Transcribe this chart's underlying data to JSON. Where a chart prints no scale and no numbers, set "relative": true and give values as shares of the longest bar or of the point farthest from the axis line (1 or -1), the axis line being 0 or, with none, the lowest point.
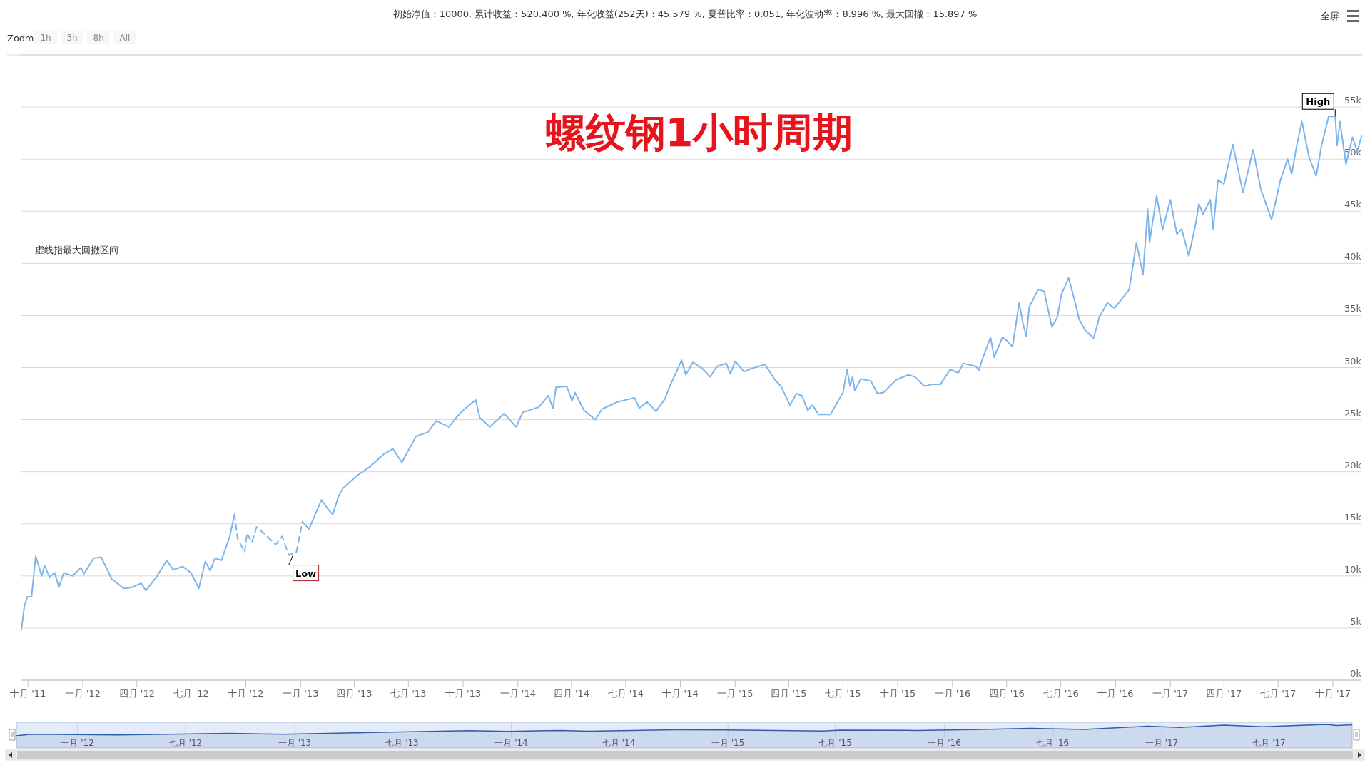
{
  "chart_data": [
    {
      "type": "line",
      "title": "螺纹钢1小时周期",
      "subtitle": "初始净值：10000, 累计收益：520.400 %, 年化收益(252天)：45.579 %, 夏普比率：0.051, 年化波动率：8.996 %, 最大回撤：15.897 %",
      "annotations": [
        {
          "text": "Low",
          "x": "2012-12-12",
          "y": 12000
        },
        {
          "text": "High",
          "x": "2017-10-05",
          "y": 54100
        },
        "虚线指最大回撤区间",
        "Zoom",
        "1h",
        "3h",
        "8h",
        "All",
        "全屏"
      ],
      "xlim": [
        "2011-09-20",
        "2017-11-18"
      ],
      "ylim": [
        0,
        60000
      ],
      "xticks": [
        {
          "value": "2011-10-01",
          "label": "十月 '11"
        },
        {
          "value": "2012-01-01",
          "label": "一月 '12"
        },
        {
          "value": "2012-04-01",
          "label": "四月 '12"
        },
        {
          "value": "2012-07-01",
          "label": "七月 '12"
        },
        {
          "value": "2012-10-01",
          "label": "十月 '12"
        },
        {
          "value": "2013-01-01",
          "label": "一月 '13"
        },
        {
          "value": "2013-04-01",
          "label": "四月 '13"
        },
        {
          "value": "2013-07-01",
          "label": "七月 '13"
        },
        {
          "value": "2013-10-01",
          "label": "十月 '13"
        },
        {
          "value": "2014-01-01",
          "label": "一月 '14"
        },
        {
          "value": "2014-04-01",
          "label": "四月 '14"
        },
        {
          "value": "2014-07-01",
          "label": "七月 '14"
        },
        {
          "value": "2014-10-01",
          "label": "十月 '14"
        },
        {
          "value": "2015-01-01",
          "label": "一月 '15"
        },
        {
          "value": "2015-04-01",
          "label": "四月 '15"
        },
        {
          "value": "2015-07-01",
          "label": "七月 '15"
        },
        {
          "value": "2015-10-01",
          "label": "十月 '15"
        },
        {
          "value": "2016-01-01",
          "label": "一月 '16"
        },
        {
          "value": "2016-04-01",
          "label": "四月 '16"
        },
        {
          "value": "2016-07-01",
          "label": "七月 '16"
        },
        {
          "value": "2016-10-01",
          "label": "十月 '16"
        },
        {
          "value": "2017-01-01",
          "label": "一月 '17"
        },
        {
          "value": "2017-04-01",
          "label": "四月 '17"
        },
        {
          "value": "2017-07-01",
          "label": "七月 '17"
        },
        {
          "value": "2017-10-01",
          "label": "十月 '17"
        }
      ],
      "yticks": [
        {
          "value": 0,
          "label": "0k"
        },
        {
          "value": 5000,
          "label": "5k"
        },
        {
          "value": 10000,
          "label": "10k"
        },
        {
          "value": 15000,
          "label": "15k"
        },
        {
          "value": 20000,
          "label": "20k"
        },
        {
          "value": 25000,
          "label": "25k"
        },
        {
          "value": 30000,
          "label": "30k"
        },
        {
          "value": 35000,
          "label": "35k"
        },
        {
          "value": 40000,
          "label": "40k"
        },
        {
          "value": 45000,
          "label": "45k"
        },
        {
          "value": 50000,
          "label": "50k"
        },
        {
          "value": 55000,
          "label": "55k"
        },
        {
          "value": 60000,
          "label": null
        }
      ],
      "grid": "y",
      "series": [
        {
          "color": "#7cb5ec",
          "line_style": "solid",
          "x": [
            "2011-09-20",
            "2011-09-25",
            "2011-09-30",
            "2011-10-07",
            "2011-10-14",
            "2011-10-24",
            "2011-10-29",
            "2011-11-06",
            "2011-11-15",
            "2011-11-22",
            "2011-11-30",
            "2011-12-15",
            "2011-12-29",
            "2012-01-03",
            "2012-01-19",
            "2012-02-01",
            "2012-02-19",
            "2012-03-10",
            "2012-03-23",
            "2012-04-08",
            "2012-04-16",
            "2012-05-05",
            "2012-05-21",
            "2012-06-01",
            "2012-06-17",
            "2012-07-01",
            "2012-07-14",
            "2012-07-25",
            "2012-08-02",
            "2012-08-10",
            "2012-08-21",
            "2012-09-04",
            "2012-09-12",
            "2012-10-19",
            "2013-01-04",
            "2013-01-15",
            "2013-02-05",
            "2013-02-16",
            "2013-02-24",
            "2013-03-06",
            "2013-03-13",
            "2013-04-05",
            "2013-04-28",
            "2013-05-21",
            "2013-06-05",
            "2013-06-20",
            "2013-07-14",
            "2013-08-03",
            "2013-08-17",
            "2013-09-07",
            "2013-09-21",
            "2013-10-01",
            "2013-10-22",
            "2013-10-29",
            "2013-11-15",
            "2013-12-09",
            "2013-12-29",
            "2014-01-09",
            "2014-02-05",
            "2014-02-21",
            "2014-03-01",
            "2014-03-06",
            "2014-03-24",
            "2014-04-02",
            "2014-04-07",
            "2014-04-22",
            "2014-05-11",
            "2014-05-22",
            "2014-06-17",
            "2014-07-16",
            "2014-07-24",
            "2014-08-06",
            "2014-08-21",
            "2014-09-05",
            "2014-09-13",
            "2014-09-26",
            "2014-10-03",
            "2014-10-10",
            "2014-10-22",
            "2014-11-07",
            "2014-11-20",
            "2014-12-01",
            "2014-12-17",
            "2014-12-24",
            "2015-01-01",
            "2015-01-16",
            "2015-01-28",
            "2015-02-20",
            "2015-03-09",
            "2015-03-19",
            "2015-04-03",
            "2015-04-14",
            "2015-04-23",
            "2015-05-03",
            "2015-05-11",
            "2015-05-21",
            "2015-06-10",
            "2015-06-21",
            "2015-07-01",
            "2015-07-08",
            "2015-07-13",
            "2015-07-17",
            "2015-07-21",
            "2015-07-31",
            "2015-08-17",
            "2015-08-28",
            "2015-09-07",
            "2015-09-28",
            "2015-10-19",
            "2015-10-30",
            "2015-11-15",
            "2015-11-28",
            "2015-12-12",
            "2015-12-28",
            "2016-01-11",
            "2016-01-19",
            "2016-02-10",
            "2016-02-14",
            "2016-02-19",
            "2016-03-05",
            "2016-03-11",
            "2016-03-25",
            "2016-04-01",
            "2016-04-11",
            "2016-04-22",
            "2016-04-29",
            "2016-05-04",
            "2016-05-09",
            "2016-05-24",
            "2016-06-03",
            "2016-06-16",
            "2016-06-25",
            "2016-07-02",
            "2016-07-14",
            "2016-07-23",
            "2016-08-01",
            "2016-08-11",
            "2016-08-25",
            "2016-09-04",
            "2016-09-17",
            "2016-09-29",
            "2016-10-09",
            "2016-10-24",
            "2016-11-05",
            "2016-11-16",
            "2016-11-24",
            "2016-11-27",
            "2016-12-09",
            "2016-12-19",
            "2017-01-01",
            "2017-01-12",
            "2017-01-20",
            "2017-02-01",
            "2017-02-13",
            "2017-02-18",
            "2017-02-25",
            "2017-03-09",
            "2017-03-14",
            "2017-03-22",
            "2017-04-01",
            "2017-04-16",
            "2017-05-03",
            "2017-05-20",
            "2017-06-02",
            "2017-06-20",
            "2017-07-05",
            "2017-07-17",
            "2017-07-24",
            "2017-08-01",
            "2017-08-10",
            "2017-08-22",
            "2017-09-03",
            "2017-09-12",
            "2017-09-24",
            "2017-10-05",
            "2017-10-08",
            "2017-10-13",
            "2017-10-23",
            "2017-11-03",
            "2017-11-11",
            "2017-11-18"
          ],
          "values": [
            4850,
            7100,
            8000,
            8000,
            11900,
            10000,
            11000,
            9900,
            10300,
            8900,
            10300,
            10000,
            10800,
            10200,
            11700,
            11800,
            9700,
            8800,
            8900,
            9300,
            8600,
            10000,
            11500,
            10600,
            10900,
            10300,
            8800,
            11400,
            10500,
            11700,
            11500,
            13800,
            15900,
            null,
            15200,
            14500,
            17300,
            16400,
            15900,
            17700,
            18400,
            19600,
            20500,
            21700,
            22200,
            20900,
            23400,
            23800,
            24900,
            24300,
            25300,
            25900,
            26900,
            25200,
            24300,
            25600,
            24300,
            25700,
            26200,
            27300,
            26100,
            28100,
            28200,
            26800,
            27600,
            25900,
            25000,
            26000,
            26700,
            27100,
            26100,
            26700,
            25800,
            27000,
            28200,
            29800,
            30700,
            29300,
            30500,
            29900,
            29100,
            30100,
            30400,
            29400,
            30600,
            29600,
            29900,
            30300,
            28800,
            28200,
            26400,
            27500,
            27300,
            25900,
            26400,
            25500,
            25500,
            26600,
            27600,
            29800,
            28200,
            29100,
            27800,
            28900,
            28700,
            27500,
            27600,
            28800,
            29300,
            29100,
            28200,
            28400,
            28400,
            29800,
            29500,
            30400,
            30100,
            29700,
            30600,
            32900,
            31000,
            32900,
            32600,
            32000,
            36200,
            34100,
            33000,
            35800,
            37500,
            37300,
            33900,
            34800,
            37000,
            38600,
            36700,
            34600,
            33600,
            32800,
            34900,
            36200,
            35700,
            36400,
            37500,
            42000,
            38900,
            45200,
            42000,
            46500,
            43200,
            46100,
            42800,
            43300,
            40700,
            43900,
            45700,
            44700,
            46100,
            43300,
            48000,
            47600,
            51400,
            46800,
            50900,
            47100,
            44200,
            48000,
            50000,
            48600,
            51200,
            53600,
            50200,
            48400,
            51300,
            54100,
            54100,
            51300,
            53600,
            49500,
            52100,
            50700,
            52200
          ]
        },
        {
          "color": "#7cb5ec",
          "line_style": "dashed",
          "x": [
            "2012-09-12",
            "2012-09-17",
            "2012-09-29",
            "2012-10-03",
            "2012-10-11",
            "2012-10-19",
            "2012-11-04",
            "2012-11-20",
            "2012-12-01",
            "2012-12-12",
            "2012-12-25",
            "2013-01-04"
          ],
          "values": [
            15900,
            13600,
            12300,
            14100,
            13200,
            14700,
            13900,
            13000,
            13800,
            12000,
            12300,
            15200
          ]
        }
      ]
    },
    {
      "type": "area",
      "relative": true,
      "tick_labels": "x",
      "color": "#335cad",
      "grid": "x",
      "xlim": [
        "2011-09-20",
        "2017-11-18"
      ],
      "xticks": [
        {
          "value": "2012-01-01",
          "label": "一月 '12"
        },
        {
          "value": "2012-07-01",
          "label": "七月 '12"
        },
        {
          "value": "2013-01-01",
          "label": "一月 '13"
        },
        {
          "value": "2013-07-01",
          "label": "七月 '13"
        },
        {
          "value": "2014-01-01",
          "label": "一月 '14"
        },
        {
          "value": "2014-07-01",
          "label": "七月 '14"
        },
        {
          "value": "2015-01-01",
          "label": "一月 '15"
        },
        {
          "value": "2015-07-01",
          "label": "七月 '15"
        },
        {
          "value": "2016-01-01",
          "label": "一月 '16"
        },
        {
          "value": "2016-07-01",
          "label": "七月 '16"
        },
        {
          "value": "2017-01-01",
          "label": "一月 '17"
        },
        {
          "value": "2017-07-01",
          "label": "七月 '17"
        }
      ],
      "x": [
        "2011-09-20",
        "2011-10-14",
        "2012-03-10",
        "2012-09-12",
        "2012-12-12",
        "2013-10-22",
        "2013-12-29",
        "2014-03-24",
        "2014-05-11",
        "2014-10-03",
        "2015-01-01",
        "2015-06-10",
        "2015-07-08",
        "2015-11-15",
        "2016-03-05",
        "2016-05-24",
        "2016-08-25",
        "2016-12-09",
        "2017-02-01",
        "2017-04-16",
        "2017-06-20",
        "2017-10-05",
        "2017-10-23",
        "2017-11-18"
      ],
      "values": [
        0,
        0.143,
        0.08,
        0.224,
        0.145,
        0.448,
        0.395,
        0.474,
        0.409,
        0.525,
        0.523,
        0.419,
        0.507,
        0.474,
        0.57,
        0.663,
        0.568,
        0.846,
        0.728,
        0.945,
        0.799,
        1,
        0.907,
        0.961
      ]
    }
  ]
}
